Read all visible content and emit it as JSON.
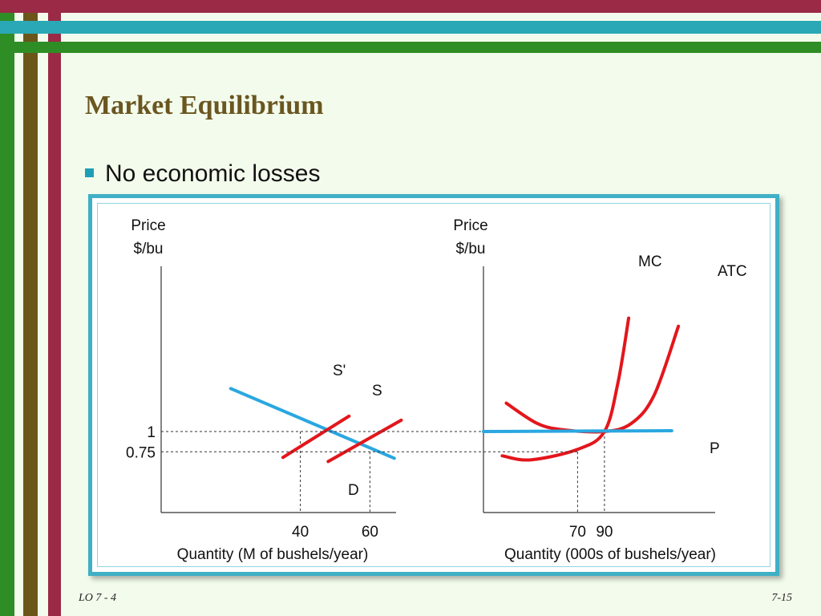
{
  "slide": {
    "title": "Market Equilibrium",
    "bullet": "No economic losses",
    "footer_left": "LO 7 - 4",
    "footer_right": "7-15",
    "colors": {
      "accent": "#1e9fb8",
      "title": "#6a5620",
      "frame": "#3fb0c6",
      "stripe_green": "#2f8d25",
      "stripe_brown": "#6b5519",
      "stripe_red": "#9a2a46",
      "stripe_teal": "#2aa8b5"
    }
  },
  "chart_data": [
    {
      "type": "line",
      "ylabel": [
        "Price",
        "$/bu"
      ],
      "xlabel": "Quantity (M of bushels/year)",
      "series": [
        {
          "name": "D",
          "color": "#2aa7e0",
          "points": [
            [
              20,
              1.53
            ],
            [
              67,
              0.67
            ]
          ]
        },
        {
          "name": "S'",
          "color": "#e3161c",
          "points": [
            [
              35,
              0.68
            ],
            [
              54,
              1.19
            ]
          ]
        },
        {
          "name": "S",
          "color": "#e3161c",
          "points": [
            [
              48,
              0.63
            ],
            [
              69,
              1.14
            ]
          ]
        }
      ],
      "y_ticks": [
        1,
        0.75
      ],
      "x_ticks": [
        40,
        60
      ],
      "equilibria": [
        {
          "x": 40,
          "y": 1
        },
        {
          "x": 60,
          "y": 0.75
        }
      ]
    },
    {
      "type": "line",
      "ylabel": [
        "Price",
        "$/bu"
      ],
      "xlabel": "Quantity (000s of bushels/year)",
      "series": [
        {
          "name": "MC",
          "color": "#e3161c",
          "points": [
            [
              14,
              0.7
            ],
            [
              35,
              0.65
            ],
            [
              70,
              0.78
            ],
            [
              90,
              1.0
            ],
            [
              100,
              1.6
            ],
            [
              108,
              2.4
            ]
          ]
        },
        {
          "name": "ATC",
          "color": "#e3161c",
          "points": [
            [
              17,
              1.35
            ],
            [
              40,
              1.1
            ],
            [
              60,
              1.02
            ],
            [
              90,
              1.0
            ],
            [
              110,
              1.1
            ],
            [
              127,
              1.45
            ],
            [
              145,
              2.3
            ]
          ]
        },
        {
          "name": "P",
          "color": "#2aa7e0",
          "points": [
            [
              0,
              1.0
            ],
            [
              140,
              1.01
            ]
          ]
        }
      ],
      "y_ticks": [
        1,
        0.75
      ],
      "x_ticks": [
        70,
        90
      ],
      "equilibria": [
        {
          "x": 90,
          "y": 1
        },
        {
          "x": 70,
          "y": 0.75
        }
      ]
    }
  ]
}
